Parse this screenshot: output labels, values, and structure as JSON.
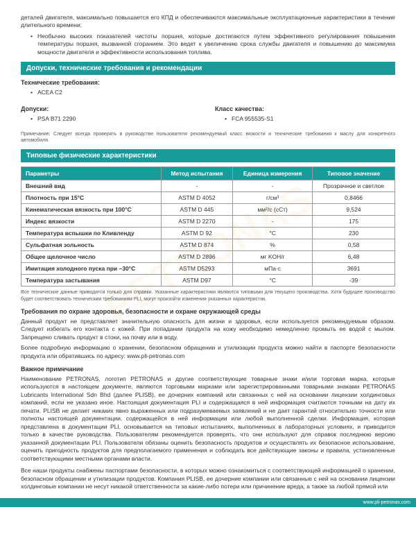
{
  "intro": {
    "p1": "деталей двигателя, максимально повышается его КПД и обеспечиваются максимальные эксплуатационные характеристики в течение длительного времени;",
    "li1": "Необычно высоких показателей чистоты поршня, которые достигаются путем эффективного регулирования повышения температуры поршня, вызванной сгоранием. Это ведет к увеличению срока службы двигателя и повышению до максимума мощности двигателя и эффективности использования топлива."
  },
  "section_approvals": {
    "title": "Допуски, технические требования и рекомендации",
    "tech_req_label": "Технические требования:",
    "tech_req_item": "ACEA C2",
    "approvals_label": "Допуски:",
    "approvals_item": "PSA B71 2290",
    "quality_label": "Класс качества:",
    "quality_item": "FCA 955535-S1",
    "note": "Примечание: Следует всегда проверять в руководстве пользователя рекомендуемый класс вязкости и технические требования к маслу для конкретного автомобиля."
  },
  "section_physical": {
    "title": "Типовые физические характеристики",
    "headers": {
      "param": "Параметры",
      "method": "Метод испытания",
      "unit": "Единица измерения",
      "typical": "Типовое значение"
    },
    "rows": [
      {
        "p": "Внешний вид",
        "m": "-",
        "u": "-",
        "v": "Прозрачное и светлое"
      },
      {
        "p": "Плотность при 15°C",
        "m": "ASTM D 4052",
        "u": "г/см³",
        "v": "0,8466"
      },
      {
        "p": "Кинематическая вязкость при 100°C",
        "m": "ASTM D 445",
        "u": "мм²/с (сСт)",
        "v": "9,524"
      },
      {
        "p": "Индекс вязкости",
        "m": "ASTM D 2270",
        "u": "-",
        "v": "175"
      },
      {
        "p": "Температура вспышки по Кливленду",
        "m": "ASTM D 92",
        "u": "°C",
        "v": "230"
      },
      {
        "p": "Сульфатная зольность",
        "m": "ASTM D 874",
        "u": "%",
        "v": "0,58"
      },
      {
        "p": "Общее щелочное число",
        "m": "ASTM D 2896",
        "u": "мг KOH/г",
        "v": "6,48"
      },
      {
        "p": "Имитация холодного пуска при –30°C",
        "m": "ASTM D5293",
        "u": "мПа·с",
        "v": "3691"
      },
      {
        "p": "Температура застывания",
        "m": "ASTM D97",
        "u": "°C",
        "v": "-39"
      }
    ],
    "note": "Все технические данные приводятся только для справки. Указанные характеристики являются типовыми для текущего производства. Хотя будущее производство будет соответствовать техническим требованиям PLI, могут произойти изменения указанных характеристик."
  },
  "health": {
    "title": "Требования по охране здоровья, безопасности и охране окружающей среды",
    "p1": "Данный продукт не представляет значительную опасность для жизни и здоровья, если используется рекомендуемым образом. Следует избегать его контакта с кожей. При попадании продукта на кожу необходимо немедленно промыть ее водой с мылом. Запрещено сливать продукт в стоки, на почву или в воду.",
    "p2": "Более подробную информацию о хранении, безопасном обращении и утилизации продукта можно найти в паспорте безопасности продукта или обратившись по адресу: www.pli-petronas.com"
  },
  "important": {
    "title": "Важное примечание",
    "p1": "Наименование PETRONAS, логотип PETRONAS и другие соответствующие товарные знаки и/или торговая марка, которые используются в настоящем документе, являются торговыми марками или зарегистрированными товарными знаками PETRONAS Lubricants International Sdn Bhd (далее PLISB), ее дочерних компаний или связанных с ней на основании лицензии холдинговых компаний, если не указано иное. Настоящая документация PLI и содержащаяся в ней информация считаются точными на дату их печати. PLISB не делает никаких явно выраженных или подразумеваемых заявлений и не дает гарантий относительно точности или полноты настоящей документации, содержащейся в ней информации или любой выполненной сделки. Информация, которая представлена в документации PLI, основывается на типовых испытаниях, выполненных в лабораторных условиях, и приводится только в качестве руководства. Пользователям рекомендуется проверять, что они используют для справок последнюю версию указанной документации PLI. Пользователи обязаны оценить безопасность продуктов и осуществлять их безопасное использование, оценить пригодность продуктов для предполагаемого применения и соблюдать все действующие законы и правила, установленные соответствующими местными органами власти.",
    "p2": "Все наши продукты снабжены паспортами безопасности, в которых можно ознакомиться с соответствующей информацией о хранении, безопасном обращении и утилизации продуктов. Компания PLISB, ее дочерние компании или связанные с ней на основании лицензии холдинговые компании не несут никакой ответственности за какие-либо потери или причинение вреда, а также за любой прямой или"
  },
  "footer": "www.pli-petronas.com",
  "watermark": "PETRONAS",
  "styling": {
    "header_bg": "#1a9b9b",
    "header_fg": "#ffffff",
    "border_color": "#999999",
    "text_color": "#333333",
    "body_fontsize": 8.5,
    "watermark_color": "rgba(230,160,60,0.08)"
  }
}
